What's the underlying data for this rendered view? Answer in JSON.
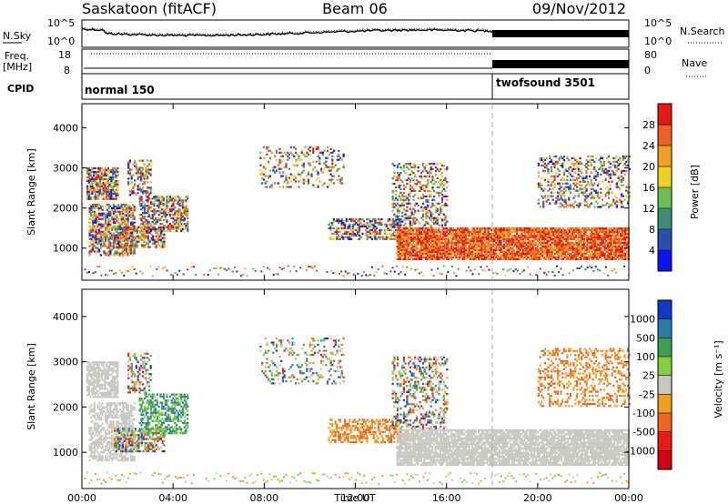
{
  "header": {
    "station": "Saskatoon (fitACF)",
    "beam": "Beam 06",
    "date": "09/Nov/2012"
  },
  "chart_data": [
    {
      "type": "line",
      "panel": "noise",
      "left_label": "N.Sky",
      "right_label": "N.Search",
      "ylim_labels": [
        "10^0",
        "10^5"
      ],
      "right_ylim_labels": [
        "10^0",
        "10^5"
      ],
      "log_scale": true,
      "xlim": [
        0,
        24
      ]
    },
    {
      "type": "line",
      "panel": "frequency",
      "left_label": "Freq.",
      "left_unit": "[MHz]",
      "right_label": "Nave",
      "yticks_left": [
        8,
        18
      ],
      "yticks_right": [
        0,
        80
      ],
      "xlim": [
        0,
        24
      ]
    },
    {
      "type": "table",
      "panel": "cpid",
      "label": "CPID",
      "segments": [
        {
          "name": "normal 150",
          "start": 0,
          "end": 18
        },
        {
          "name": "twofsound 3501",
          "start": 18,
          "end": 24
        }
      ]
    },
    {
      "type": "heatmap",
      "panel": "power",
      "ylabel": "Slant Range [km]",
      "yticks": [
        1000,
        2000,
        3000,
        4000
      ],
      "ylim": [
        200,
        4600
      ],
      "xlim": [
        0,
        24
      ],
      "xticks": [
        0,
        4,
        8,
        12,
        16,
        20,
        24
      ],
      "colorbar": {
        "label": "Power [dB]",
        "ticks": [
          "4",
          "8",
          "12",
          "16",
          "20",
          "24",
          "28"
        ],
        "colors": [
          "#0a14f0",
          "#2850b4",
          "#3c8c78",
          "#6cc050",
          "#f0d020",
          "#f0a028",
          "#f06020",
          "#e01a14"
        ]
      }
    },
    {
      "type": "heatmap",
      "panel": "velocity",
      "ylabel": "Slant Range [km]",
      "yticks": [
        1000,
        2000,
        3000,
        4000
      ],
      "ylim": [
        200,
        4600
      ],
      "xlim": [
        0,
        24
      ],
      "xticks": [
        0,
        4,
        8,
        12,
        16,
        20,
        24
      ],
      "xticklabels": [
        "00:00",
        "04:00",
        "08:00",
        "12:00",
        "16:00",
        "20:00",
        "00:00"
      ],
      "xlabel": "Time UT",
      "colorbar": {
        "label": "Velocity [m s⁻¹]",
        "ticks": [
          "1000",
          "500",
          "100",
          "25",
          "-25",
          "-100",
          "-500",
          "-1000"
        ],
        "colors": [
          "#1438c8",
          "#2c7ca8",
          "#3ca050",
          "#84d040",
          "#c8c8c0",
          "#f0a020",
          "#f06420",
          "#e81c14",
          "#d80010"
        ]
      }
    }
  ]
}
